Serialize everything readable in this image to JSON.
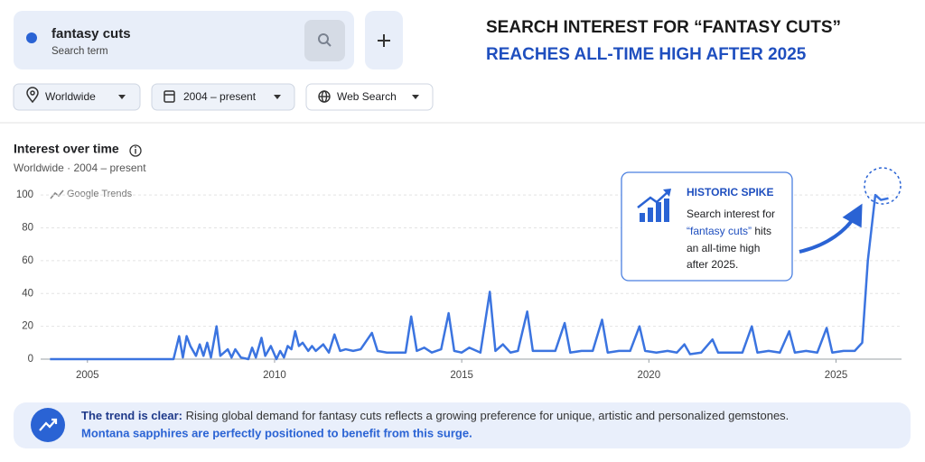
{
  "search": {
    "term": "fantasy cuts",
    "caption": "Search term"
  },
  "filters": {
    "region": "Worldwide",
    "period": "2004 – present",
    "source": "Web Search"
  },
  "headline": {
    "line1": "SEARCH INTEREST FOR “FANTASY CUTS”",
    "line2": "REACHES ALL-TIME HIGH AFTER 2025"
  },
  "panel": {
    "title": "Interest over time",
    "subtitle": "Worldwide · 2004 – present",
    "watermark": "Google Trends"
  },
  "callout": {
    "title": "HISTORIC SPIKE",
    "line1": "Search interest for",
    "line2_highlight": "“fantasy cuts”",
    "line2_rest": " hits",
    "line3": "an all-time high",
    "line4": "after 2025."
  },
  "footer": {
    "lead": "The trend is clear:",
    "text": " Rising global demand for fantasy cuts reflects a growing preference for unique, artistic and personalized gemstones.",
    "line2": "Montana sapphires are perfectly positioned to benefit from this surge."
  },
  "chart_data": {
    "type": "line",
    "color": "#3b74e0",
    "grid": true,
    "x": [
      2004,
      2007.3,
      2007.45,
      2007.55,
      2007.65,
      2007.75,
      2007.9,
      2008.0,
      2008.1,
      2008.2,
      2008.3,
      2008.45,
      2008.55,
      2008.75,
      2008.85,
      2008.95,
      2009.1,
      2009.3,
      2009.4,
      2009.5,
      2009.65,
      2009.75,
      2009.9,
      2010.05,
      2010.15,
      2010.25,
      2010.35,
      2010.45,
      2010.55,
      2010.65,
      2010.75,
      2010.9,
      2011.0,
      2011.1,
      2011.3,
      2011.45,
      2011.6,
      2011.75,
      2011.9,
      2012.1,
      2012.3,
      2012.6,
      2012.75,
      2013.0,
      2013.3,
      2013.5,
      2013.65,
      2013.8,
      2014.0,
      2014.2,
      2014.45,
      2014.65,
      2014.8,
      2015.0,
      2015.2,
      2015.5,
      2015.75,
      2015.9,
      2016.1,
      2016.3,
      2016.5,
      2016.75,
      2016.9,
      2017.2,
      2017.5,
      2017.75,
      2017.9,
      2018.2,
      2018.5,
      2018.75,
      2018.9,
      2019.2,
      2019.5,
      2019.75,
      2019.9,
      2020.2,
      2020.5,
      2020.75,
      2020.95,
      2021.1,
      2021.4,
      2021.7,
      2021.85,
      2022.2,
      2022.5,
      2022.75,
      2022.9,
      2023.2,
      2023.5,
      2023.75,
      2023.9,
      2024.2,
      2024.5,
      2024.75,
      2024.9,
      2025.2,
      2025.5,
      2025.7,
      2025.85,
      2026.05,
      2026.2,
      2026.4
    ],
    "values": [
      0,
      0,
      14,
      1,
      14,
      8,
      2,
      9,
      2,
      10,
      1,
      20,
      2,
      6,
      1,
      6,
      1,
      0,
      7,
      1,
      13,
      2,
      8,
      0,
      5,
      1,
      8,
      6,
      17,
      8,
      10,
      5,
      8,
      5,
      9,
      4,
      15,
      5,
      6,
      5,
      6,
      16,
      5,
      4,
      4,
      4,
      26,
      5,
      7,
      4,
      6,
      28,
      5,
      4,
      7,
      4,
      41,
      5,
      9,
      4,
      5,
      29,
      5,
      5,
      5,
      22,
      4,
      5,
      5,
      24,
      4,
      5,
      5,
      20,
      5,
      4,
      5,
      4,
      9,
      3,
      4,
      12,
      4,
      4,
      4,
      20,
      4,
      5,
      4,
      17,
      4,
      5,
      4,
      19,
      4,
      5,
      5,
      10,
      60,
      100,
      97,
      98
    ],
    "xlim": [
      2003.75,
      2026.75
    ],
    "xticks": [
      2005,
      2010,
      2015,
      2020,
      2025
    ],
    "ylim": [
      0,
      105
    ],
    "yticks": [
      0,
      20,
      40,
      60,
      80,
      100
    ]
  }
}
